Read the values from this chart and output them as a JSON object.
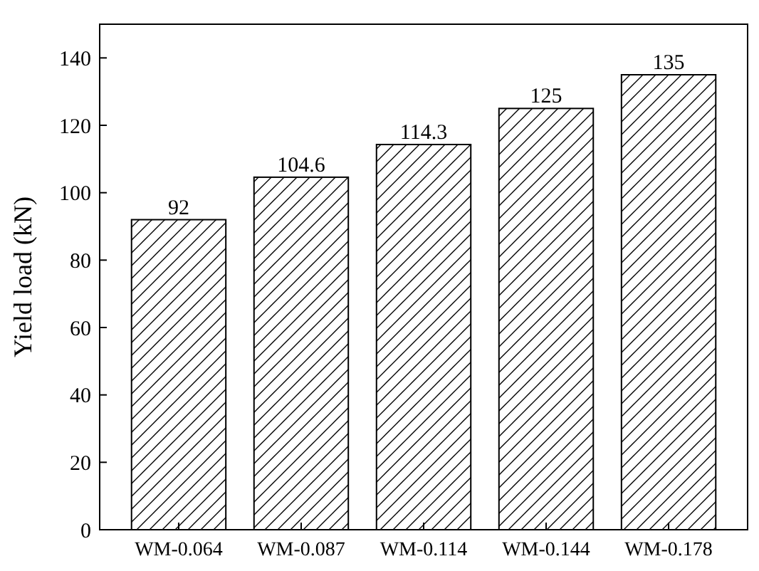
{
  "chart_data": {
    "type": "bar",
    "ylabel": "Yield load (kN)",
    "categories": [
      "WM-0.064",
      "WM-0.087",
      "WM-0.114",
      "WM-0.144",
      "WM-0.178"
    ],
    "values": [
      92,
      104.6,
      114.3,
      125,
      135
    ],
    "color": "#000000",
    "ylim": [
      0,
      150
    ],
    "yticks": [
      0,
      20,
      40,
      60,
      80,
      100,
      120,
      140
    ],
    "data_labels": true,
    "grid": false
  }
}
